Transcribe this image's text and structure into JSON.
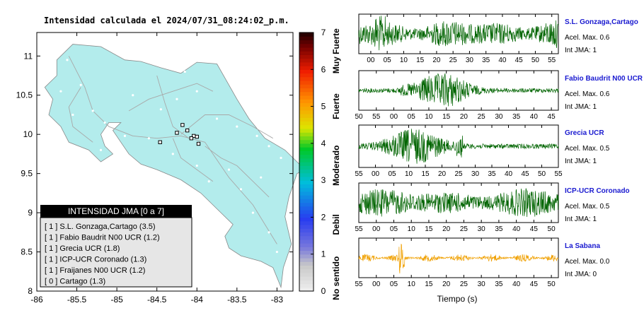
{
  "map": {
    "title": "Intensidad calculada el 2024/07/31_08:24:02_p.m.",
    "x_ticks": [
      "-86",
      "-85.5",
      "-85",
      "-84.5",
      "-84",
      "-83.5",
      "-83"
    ],
    "y_ticks": [
      "11",
      "10.5",
      "10",
      "9.5",
      "9",
      "8.5",
      "8"
    ],
    "xlim": [
      -86,
      -82.8
    ],
    "ylim": [
      8,
      11.3
    ],
    "land_color": "#b3ecec",
    "legend": {
      "title": "INTENSIDAD JMA [0 a 7]",
      "items": [
        "[ 1 ]  S.L. Gonzaga,Cartago (3.5)",
        "[ 1 ]  Fabio Baudrit N00 UCR (1.2)",
        "[ 1 ]  Grecia UCR (1.8)",
        "[ 1 ]  ICP-UCR Coronado (1.3)",
        "[ 1 ]  Fraijanes N00 UCR (1.2)",
        "[ 0 ]  Cartago (1.3)"
      ]
    }
  },
  "colorbar": {
    "ticks": [
      "7",
      "6",
      "5",
      "4",
      "3",
      "2",
      "1",
      "0"
    ],
    "labels": [
      "Muy Fuerte",
      "Fuerte",
      "Moderado",
      "Debil",
      "No sentido"
    ]
  },
  "chart_data": {
    "type": "line",
    "xlabel": "Tiempo (s)",
    "series": [
      {
        "name": "S.L. Gonzaga,Cartago",
        "accel_label": "Acel. Max. 0.6",
        "jma_label": "Int JMA: 1",
        "ticks": [
          "00",
          "05",
          "10",
          "15",
          "20",
          "25",
          "30",
          "35",
          "40",
          "45",
          "50",
          "55"
        ],
        "color": "#006400"
      },
      {
        "name": "Fabio Baudrit N00 UCR",
        "accel_label": "Acel. Max. 0.6",
        "jma_label": "Int JMA: 1",
        "ticks": [
          "50",
          "55",
          "00",
          "05",
          "10",
          "15",
          "20",
          "25",
          "30",
          "35",
          "40",
          "45"
        ],
        "color": "#006400"
      },
      {
        "name": "Grecia UCR",
        "accel_label": "Acel. Max. 0.5",
        "jma_label": "Int JMA: 1",
        "ticks": [
          "55",
          "00",
          "05",
          "10",
          "15",
          "20",
          "25",
          "30",
          "35",
          "40",
          "45",
          "50",
          "55"
        ],
        "color": "#006400"
      },
      {
        "name": "ICP-UCR Coronado",
        "accel_label": "Acel. Max. 0.5",
        "jma_label": "Int JMA: 1",
        "ticks": [
          "55",
          "00",
          "05",
          "10",
          "15",
          "20",
          "25",
          "30",
          "35",
          "40",
          "45",
          "50"
        ],
        "color": "#006400"
      },
      {
        "name": "La Sabana",
        "accel_label": "Acel. Max. 0.0",
        "jma_label": "Int JMA: 0",
        "ticks": [
          "55",
          "00",
          "05",
          "10",
          "15",
          "20",
          "25",
          "30",
          "35",
          "40",
          "45",
          "50"
        ],
        "color": "#f0a000"
      }
    ]
  }
}
